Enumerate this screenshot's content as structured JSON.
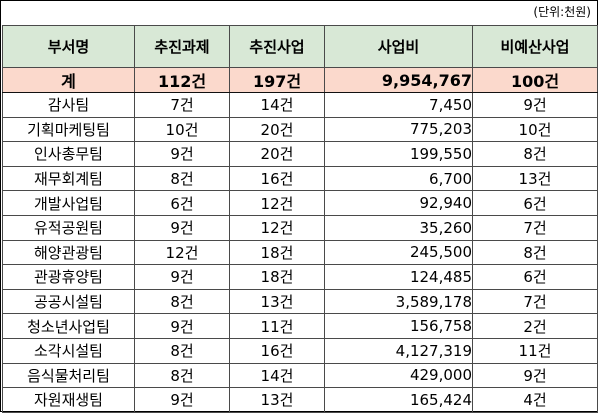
{
  "unit_note": "(단위:천원)",
  "headers": [
    "부서명",
    "추진과제",
    "추진사업",
    "사업비",
    "비예산사업"
  ],
  "total": {
    "dept": "계",
    "tasks": "112건",
    "projects": "197건",
    "budget": "9,954,767",
    "nonbudget": "100건"
  },
  "rows": [
    {
      "dept": "감사팀",
      "tasks": "7건",
      "projects": "14건",
      "budget": "7,450",
      "nonbudget": "9건"
    },
    {
      "dept": "기획마케팅팀",
      "tasks": "10건",
      "projects": "20건",
      "budget": "775,203",
      "nonbudget": "10건"
    },
    {
      "dept": "인사총무팀",
      "tasks": "9건",
      "projects": "20건",
      "budget": "199,550",
      "nonbudget": "8건"
    },
    {
      "dept": "재무회계팀",
      "tasks": "8건",
      "projects": "16건",
      "budget": "6,700",
      "nonbudget": "13건"
    },
    {
      "dept": "개발사업팀",
      "tasks": "6건",
      "projects": "12건",
      "budget": "92,940",
      "nonbudget": "6건"
    },
    {
      "dept": "유적공원팀",
      "tasks": "9건",
      "projects": "12건",
      "budget": "35,260",
      "nonbudget": "7건"
    },
    {
      "dept": "해양관광팀",
      "tasks": "12건",
      "projects": "18건",
      "budget": "245,500",
      "nonbudget": "8건"
    },
    {
      "dept": "관광휴양팀",
      "tasks": "9건",
      "projects": "18건",
      "budget": "124,485",
      "nonbudget": "6건"
    },
    {
      "dept": "공공시설팀",
      "tasks": "8건",
      "projects": "13건",
      "budget": "3,589,178",
      "nonbudget": "7건"
    },
    {
      "dept": "청소년사업팀",
      "tasks": "9건",
      "projects": "11건",
      "budget": "156,758",
      "nonbudget": "2건"
    },
    {
      "dept": "소각시설팀",
      "tasks": "8건",
      "projects": "16건",
      "budget": "4,127,319",
      "nonbudget": "11건"
    },
    {
      "dept": "음식물처리팀",
      "tasks": "8건",
      "projects": "14건",
      "budget": "429,000",
      "nonbudget": "9건"
    },
    {
      "dept": "자원재생팀",
      "tasks": "9건",
      "projects": "13건",
      "budget": "165,424",
      "nonbudget": "4건"
    }
  ],
  "colors": {
    "header_bg": "#d8e8d6",
    "total_bg": "#fbd9cc",
    "border": "#4a4a4a"
  }
}
